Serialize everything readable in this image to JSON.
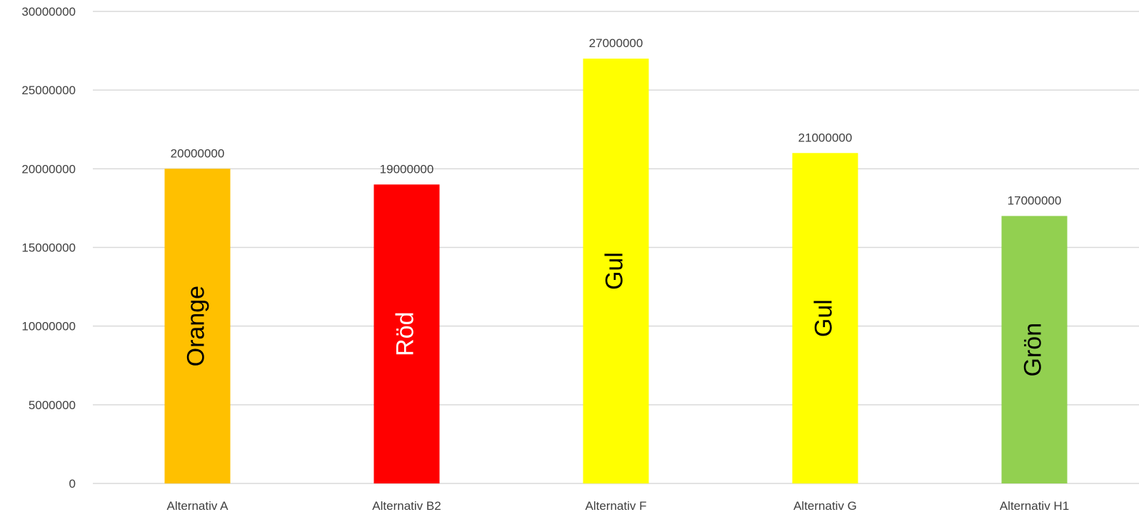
{
  "chart_data": {
    "type": "bar",
    "title": "",
    "xlabel": "",
    "ylabel": "",
    "ylim": [
      0,
      30000000
    ],
    "y_ticks": [
      0,
      5000000,
      10000000,
      15000000,
      20000000,
      25000000,
      30000000
    ],
    "y_tick_labels": [
      "0",
      "5000000",
      "10000000",
      "15000000",
      "20000000",
      "25000000",
      "30000000"
    ],
    "grid": true,
    "legend": "none",
    "categories": [
      "Alternativ A",
      "Alternativ B2",
      "Alternativ F",
      "Alternativ G",
      "Alternativ H1"
    ],
    "values": [
      20000000,
      19000000,
      27000000,
      21000000,
      17000000
    ],
    "data_labels": [
      "20000000",
      "19000000",
      "27000000",
      "21000000",
      "17000000"
    ],
    "bar_inner_labels": [
      "Orange",
      "Röd",
      "Gul",
      "Gul",
      "Grön"
    ],
    "bar_colors": [
      "#FFC000",
      "#FF0000",
      "#FFFF00",
      "#FFFF00",
      "#92D050"
    ],
    "inner_label_colors": [
      "#000000",
      "#FFFFFF",
      "#000000",
      "#000000",
      "#000000"
    ]
  }
}
